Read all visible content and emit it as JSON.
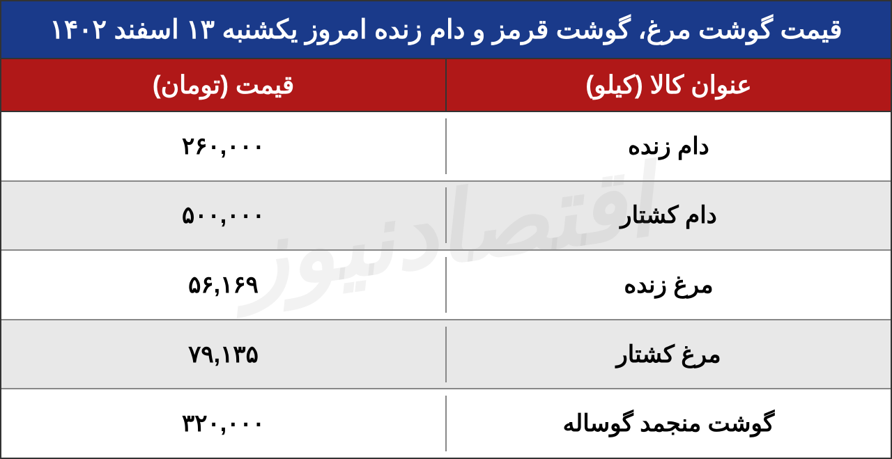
{
  "table": {
    "title": "قیمت گوشت مرغ، گوشت قرمز و دام زنده امروز یکشنبه ۱۳ اسفند ۱۴۰۲",
    "columns": [
      "عنوان کالا (کیلو)",
      "قیمت (تومان)"
    ],
    "rows": [
      {
        "item": "دام زنده",
        "price": "۲۶۰,۰۰۰"
      },
      {
        "item": "دام کشتار",
        "price": "۵۰۰,۰۰۰"
      },
      {
        "item": "مرغ زنده",
        "price": "۵۶,۱۶۹"
      },
      {
        "item": "مرغ کشتار",
        "price": "۷۹,۱۳۵"
      },
      {
        "item": "گوشت منجمد گوساله",
        "price": "۳۲۰,۰۰۰"
      }
    ],
    "title_bg": "#1a3a8a",
    "header_bg": "#b01818",
    "row_odd_bg": "#ffffff",
    "row_even_bg": "#e8e8e8",
    "text_color_header": "#ffffff",
    "text_color_body": "#000000",
    "border_color": "#333333",
    "title_fontsize": 38,
    "header_fontsize": 36,
    "body_fontsize": 34
  },
  "watermark": {
    "text": "اقتصادنیوز",
    "color": "rgba(150,150,150,0.12)",
    "fontsize": 140
  }
}
